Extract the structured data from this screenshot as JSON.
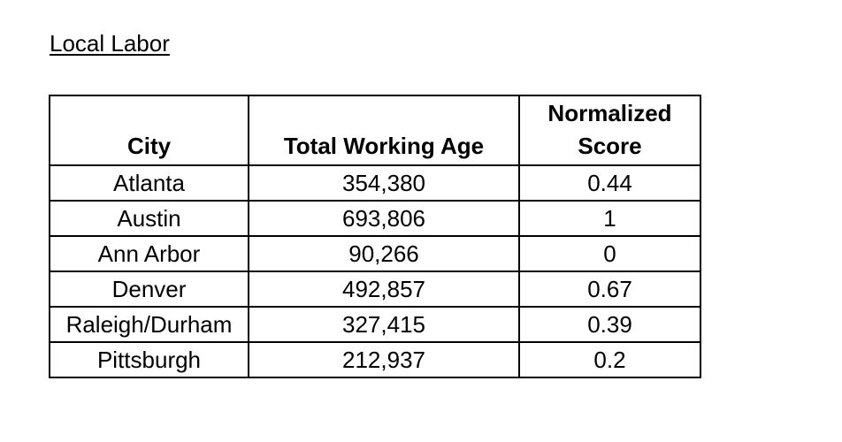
{
  "document": {
    "title": "Local Labor"
  },
  "table": {
    "headers": {
      "city": "City",
      "total_working_age": "Total Working Age",
      "normalized_score_line1": "Normalized",
      "normalized_score_line2": "Score"
    },
    "rows": [
      {
        "city": "Atlanta",
        "total_working_age": "354,380",
        "normalized_score": "0.44"
      },
      {
        "city": "Austin",
        "total_working_age": "693,806",
        "normalized_score": "1"
      },
      {
        "city": "Ann Arbor",
        "total_working_age": "90,266",
        "normalized_score": "0"
      },
      {
        "city": "Denver",
        "total_working_age": "492,857",
        "normalized_score": "0.67"
      },
      {
        "city": "Raleigh/Durham",
        "total_working_age": "327,415",
        "normalized_score": "0.39"
      },
      {
        "city": "Pittsburgh",
        "total_working_age": "212,937",
        "normalized_score": "0.2"
      }
    ]
  }
}
